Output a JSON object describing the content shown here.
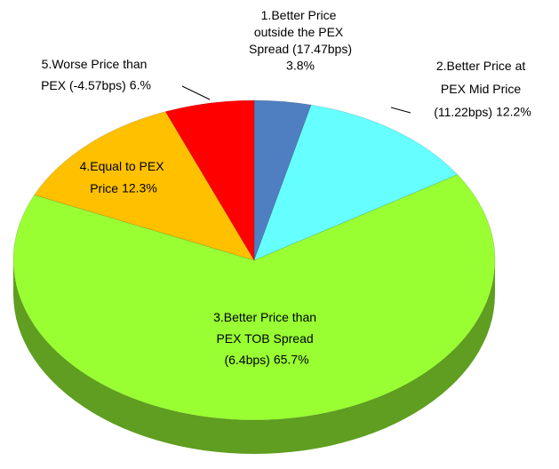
{
  "chart_data": {
    "type": "pie",
    "categories": [
      "1.Better Price outside the PEX Spread (17.47bps)",
      "2.Better Price at PEX Mid Price (11.22bps)",
      "3.Better Price than PEX TOB Spread (6.4bps)",
      "4.Equal to PEX Price",
      "5.Worse Price than PEX (-4.57bps)"
    ],
    "values": [
      3.8,
      12.2,
      65.7,
      12.3,
      6
    ],
    "value_labels": [
      "3.8%",
      "12.2%",
      "65.7%",
      "12.3%",
      "6.%"
    ],
    "colors": [
      "#4f7fc0",
      "#66ffff",
      "#99ff33",
      "#ffc000",
      "#ff0000"
    ],
    "style": "3d"
  }
}
